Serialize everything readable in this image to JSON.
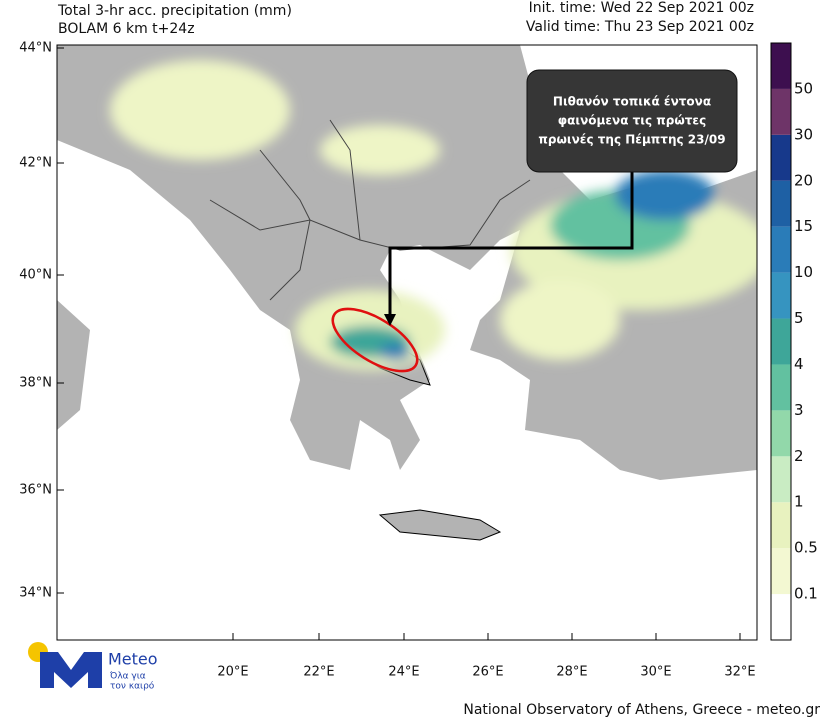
{
  "header": {
    "title": "Total 3-hr acc. precipitation (mm)",
    "model": "BOLAM 6 km t+24z",
    "init_time": "Init. time: Wed 22 Sep 2021 00z",
    "valid_time": "Valid time: Thu 23 Sep 2021 00z"
  },
  "map": {
    "lat_labels": [
      "44°N",
      "42°N",
      "40°N",
      "38°N",
      "36°N",
      "34°N"
    ],
    "lon_labels": [
      "20°E",
      "22°E",
      "24°E",
      "26°E",
      "28°E",
      "30°E",
      "32°E"
    ],
    "annotation": [
      "Πιθανόν τοπικά έντονα",
      "φαινόμενα τις πρώτες",
      "πρωινές της Πέμπτης 23/09"
    ]
  },
  "colorbar": {
    "labels": [
      "0.1",
      "0.5",
      "1",
      "2",
      "3",
      "4",
      "5",
      "10",
      "15",
      "20",
      "30",
      "50"
    ],
    "colors": [
      "#ffffff",
      "#f3f8d2",
      "#e8f2bf",
      "#c9ecc3",
      "#92d8aa",
      "#62c1a0",
      "#3ea699",
      "#3694c0",
      "#2a7cb8",
      "#1e60a4",
      "#17398b",
      "#6e3468",
      "#3d0f4f"
    ]
  },
  "logo": {
    "name": "Meteo",
    "tagline": [
      "Όλα για",
      "τον καιρό"
    ]
  },
  "footer": "National Observatory of Athens, Greece - meteo.gr"
}
